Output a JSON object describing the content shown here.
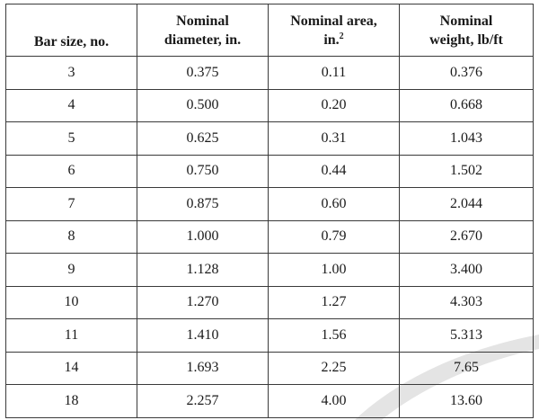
{
  "table": {
    "headers": [
      {
        "lines": [
          "",
          "Bar size, no."
        ],
        "sup": ""
      },
      {
        "lines": [
          "Nominal",
          "diameter, in."
        ],
        "sup": ""
      },
      {
        "lines": [
          "Nominal area,",
          "in."
        ],
        "sup": "2"
      },
      {
        "lines": [
          "Nominal",
          "weight, lb/ft"
        ],
        "sup": ""
      }
    ],
    "rows": [
      [
        "3",
        "0.375",
        "0.11",
        "0.376"
      ],
      [
        "4",
        "0.500",
        "0.20",
        "0.668"
      ],
      [
        "5",
        "0.625",
        "0.31",
        "1.043"
      ],
      [
        "6",
        "0.750",
        "0.44",
        "1.502"
      ],
      [
        "7",
        "0.875",
        "0.60",
        "2.044"
      ],
      [
        "8",
        "1.000",
        "0.79",
        "2.670"
      ],
      [
        "9",
        "1.128",
        "1.00",
        "3.400"
      ],
      [
        "10",
        "1.270",
        "1.27",
        "4.303"
      ],
      [
        "11",
        "1.410",
        "1.56",
        "5.313"
      ],
      [
        "14",
        "1.693",
        "2.25",
        "7.65"
      ],
      [
        "18",
        "2.257",
        "4.00",
        "13.60"
      ]
    ]
  },
  "colors": {
    "border": "#3a3a3a",
    "text": "#1a1a1a",
    "watermark": "#e4e4e4"
  }
}
